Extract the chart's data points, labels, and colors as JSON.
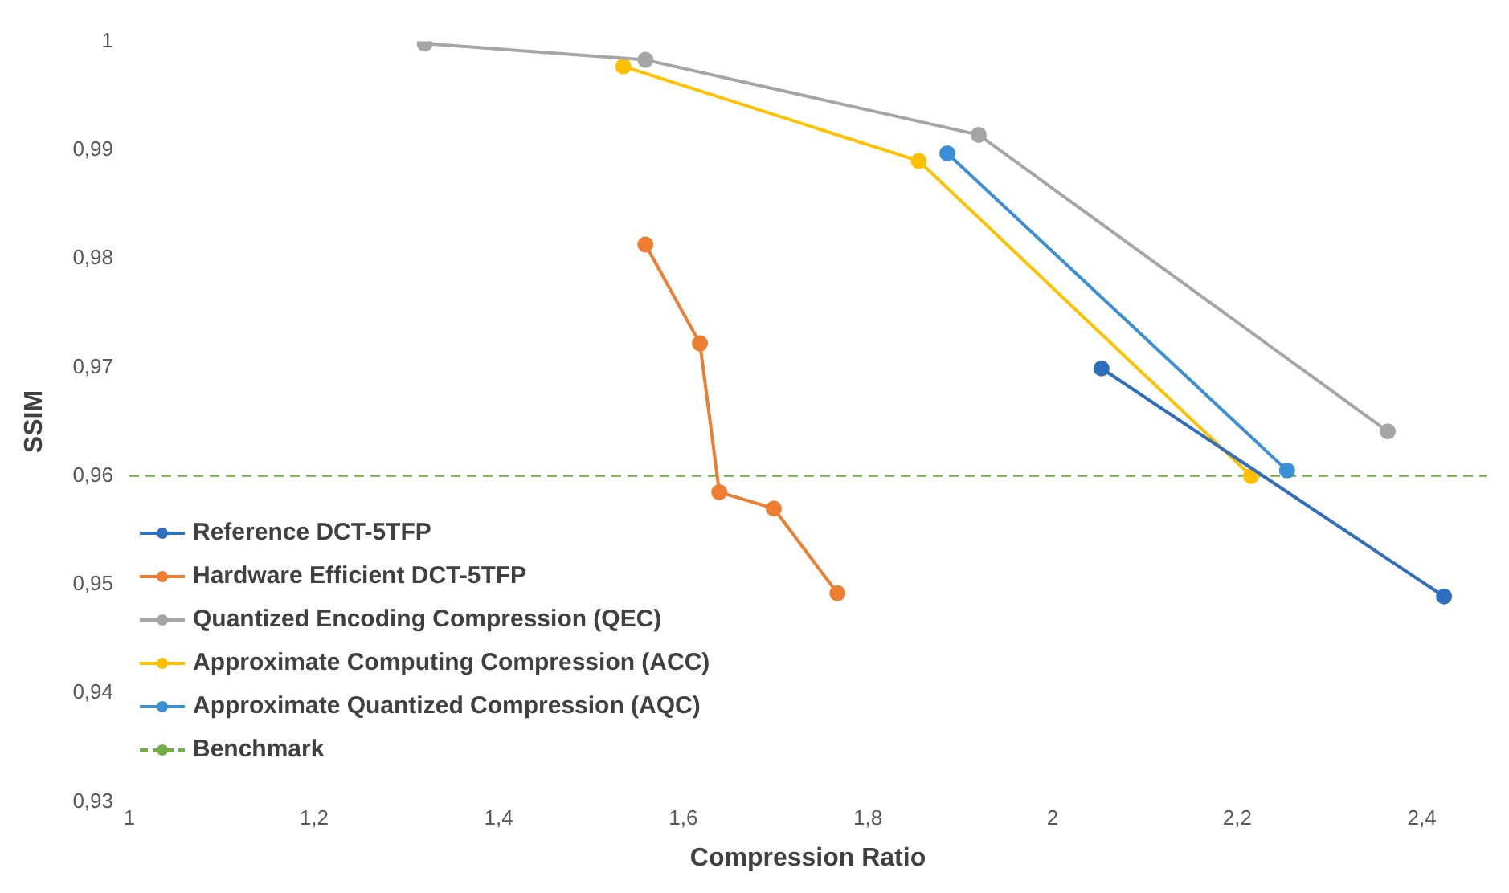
{
  "chart_data": {
    "type": "line",
    "xlabel": "Compression Ratio",
    "ylabel": "SSIM",
    "xlim": [
      1,
      2.47
    ],
    "xticks": [
      {
        "value": 1,
        "label": "1"
      },
      {
        "value": 1.2,
        "label": "1,2"
      },
      {
        "value": 1.4,
        "label": "1,4"
      },
      {
        "value": 1.6,
        "label": "1,6"
      },
      {
        "value": 1.8,
        "label": "1,8"
      },
      {
        "value": 2,
        "label": "2"
      },
      {
        "value": 2.2,
        "label": "2,2"
      },
      {
        "value": 2.4,
        "label": "2,4"
      }
    ],
    "ylim": [
      0.93,
      1
    ],
    "yticks": [
      {
        "value": 0.93,
        "label": "0,93"
      },
      {
        "value": 0.94,
        "label": "0,94"
      },
      {
        "value": 0.95,
        "label": "0,95"
      },
      {
        "value": 0.96,
        "label": "0,96"
      },
      {
        "value": 0.97,
        "label": "0,97"
      },
      {
        "value": 0.98,
        "label": "0,98"
      },
      {
        "value": 0.99,
        "label": "0,99"
      },
      {
        "value": 1,
        "label": "1"
      }
    ],
    "grid": false,
    "legend": "bottom left",
    "marker": "circle",
    "line_style": "solid",
    "series": [
      {
        "name": "Reference DCT-5TFP",
        "color": "#2e6ebf",
        "x": [
          2.053,
          2.424
        ],
        "values": [
          0.9699,
          0.9489
        ]
      },
      {
        "name": "Hardware Efficient DCT-5TFP",
        "color": "#ed7d31",
        "x": [
          1.559,
          1.618,
          1.639,
          1.698,
          1.767
        ],
        "values": [
          0.9813,
          0.9722,
          0.9585,
          0.957,
          0.9492
        ]
      },
      {
        "name": "Quantized Encoding Compression (QEC)",
        "color": "#a5a5a5",
        "x": [
          1.32,
          1.559,
          1.92,
          2.363
        ],
        "values": [
          0.9998,
          0.9983,
          0.9914,
          0.9641
        ]
      },
      {
        "name": "Approximate Computing Compression (ACC)",
        "color": "#ffc000",
        "x": [
          1.535,
          1.855,
          2.215
        ],
        "values": [
          0.9977,
          0.989,
          0.96
        ]
      },
      {
        "name": "Approximate Quantized Compression (AQC)",
        "color": "#3b8fd4",
        "x": [
          1.886,
          2.254
        ],
        "values": [
          0.9897,
          0.9605
        ]
      }
    ],
    "ref_lines": [
      {
        "axis": "y",
        "value": 0.96,
        "label": "Benchmark",
        "color": "#70ad47",
        "line_style": "dashed"
      }
    ]
  }
}
